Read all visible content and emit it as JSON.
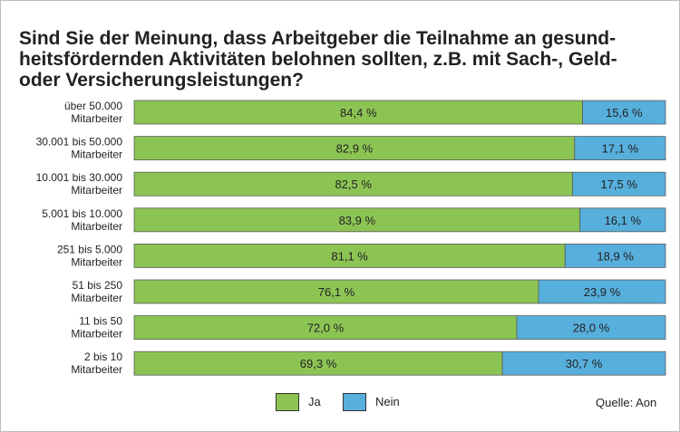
{
  "chart_data": {
    "type": "bar",
    "stacked": true,
    "orientation": "horizontal",
    "title_lines": [
      "Sind Sie der Meinung, dass Arbeitgeber die Teilnahme an gesund-",
      "heitsfördernden Aktivitäten belohnen sollten, z.B. mit Sach-, Geld-",
      "oder Versicherungsleistungen?"
    ],
    "categories": [
      [
        "über 50.000",
        "Mitarbeiter"
      ],
      [
        "30.001 bis 50.000",
        "Mitarbeiter"
      ],
      [
        "10.001 bis 30.000",
        "Mitarbeiter"
      ],
      [
        "5.001 bis 10.000",
        "Mitarbeiter"
      ],
      [
        "251 bis  5.000",
        "Mitarbeiter"
      ],
      [
        "51 bis 250",
        "Mitarbeiter"
      ],
      [
        "11 bis 50",
        "Mitarbeiter"
      ],
      [
        "2 bis 10",
        "Mitarbeiter"
      ]
    ],
    "series": [
      {
        "name": "Ja",
        "color": "#8cc454",
        "values": [
          84.4,
          82.9,
          82.5,
          83.9,
          81.1,
          76.1,
          72.0,
          69.3
        ],
        "labels": [
          "84,4 %",
          "82,9 %",
          "82,5 %",
          "83,9 %",
          "81,1 %",
          "76,1 %",
          "72,0 %",
          "69,3 %"
        ]
      },
      {
        "name": "Nein",
        "color": "#57afdc",
        "values": [
          15.6,
          17.1,
          17.5,
          16.1,
          18.9,
          23.9,
          28.0,
          30.7
        ],
        "labels": [
          "15,6 %",
          "17,1 %",
          "17,5 %",
          "16,1 %",
          "18,9 %",
          "23,9 %",
          "28,0 %",
          "30,7 %"
        ]
      }
    ],
    "xlim": [
      0,
      100
    ],
    "grid": false,
    "legend_position": "bottom",
    "source": "Quelle: Aon"
  }
}
